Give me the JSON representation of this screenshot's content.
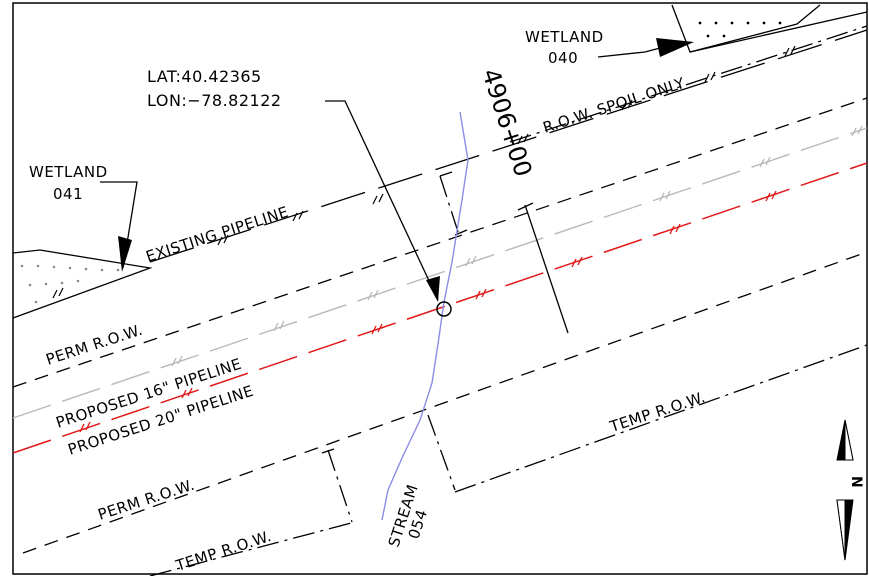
{
  "labels": {
    "wetland_040": [
      "WETLAND",
      "040"
    ],
    "wetland_041": [
      "WETLAND",
      "041"
    ],
    "coordinates": [
      "LAT:40.42365",
      "LON:−78.82122"
    ],
    "station": "4906+00",
    "row_spoil": "R.O.W. SPOIL ONLY",
    "existing_pipeline": "EXISTING PIPELINE",
    "perm_row_upper": "PERM R.O.W.",
    "proposed_16": "PROPOSED 16\" PIPELINE",
    "proposed_20": "PROPOSED 20\" PIPELINE",
    "temp_row_right": "TEMP R.O.W.",
    "perm_row_lower": "PERM R.O.W.",
    "temp_row_lower": "TEMP R.O.W.",
    "stream_054": [
      "STREAM",
      "054"
    ],
    "north": "N"
  },
  "colors": {
    "proposed_20_line": "#e11919",
    "proposed_16_line": "#b8b8b8",
    "stream_line": "#8c8ce6",
    "drawing_lines": "#000000"
  },
  "icons": {
    "north_arrow": "north-arrow-icon",
    "crossing_point": "crossing-circle-icon"
  }
}
